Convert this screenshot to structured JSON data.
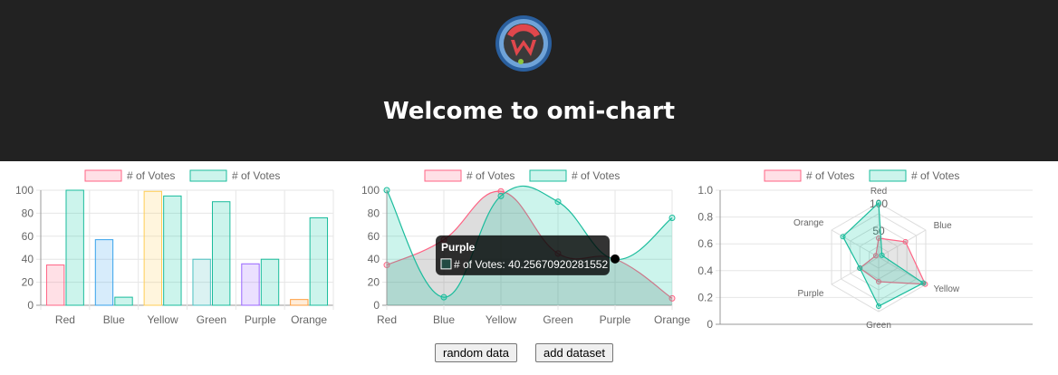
{
  "header": {
    "title": "Welcome to omi-chart",
    "logo_colors": {
      "ring_outer": "#2a5f9e",
      "ring_inner": "#6fa3d8",
      "core": "#e0474c",
      "dot": "#8cc63f"
    }
  },
  "colors": {
    "red_fill": "rgba(255,99,132,0.2)",
    "red_line": "#ff6384",
    "blue_fill": "rgba(54,162,235,0.2)",
    "blue_line": "#36a2eb",
    "yellow_fill": "rgba(255,206,86,0.2)",
    "yellow_line": "#ffce56",
    "green_fill": "rgba(75,192,192,0.2)",
    "green_line": "#4bc0c0",
    "purple_fill": "rgba(153,102,255,0.2)",
    "purple_line": "#9966ff",
    "orange_fill": "rgba(255,159,64,0.2)",
    "orange_line": "#ff9f40",
    "teal_fill": "rgba(0,200,160,0.2)",
    "teal_line": "#1abc9c",
    "pink_fill": "rgba(255,99,132,0.2)",
    "pink_line": "#ff6384"
  },
  "chart_data": [
    {
      "type": "bar",
      "categories": [
        "Red",
        "Blue",
        "Yellow",
        "Green",
        "Purple",
        "Orange"
      ],
      "ylim": [
        0,
        100
      ],
      "yticks": [
        0,
        20,
        40,
        60,
        80,
        100
      ],
      "legend_position": "top",
      "series": [
        {
          "name": "# of Votes",
          "values": [
            35,
            57,
            99,
            40,
            36,
            5
          ]
        },
        {
          "name": "# of Votes",
          "values": [
            100,
            7,
            95,
            90,
            40,
            76
          ]
        }
      ]
    },
    {
      "type": "area",
      "categories": [
        "Red",
        "Blue",
        "Yellow",
        "Green",
        "Purple",
        "Orange"
      ],
      "ylim": [
        0,
        100
      ],
      "yticks": [
        0,
        20,
        40,
        60,
        80,
        100
      ],
      "legend_position": "top",
      "series": [
        {
          "name": "# of Votes",
          "values": [
            35,
            57,
            99,
            45,
            40.2567092028155,
            6
          ]
        },
        {
          "name": "# of Votes",
          "values": [
            100,
            7,
            95,
            90,
            40,
            76
          ]
        }
      ],
      "tooltip": {
        "title": "Purple",
        "label": "# of Votes: 40.25670920281552"
      }
    },
    {
      "type": "radar",
      "categories": [
        "Red",
        "Blue",
        "Yellow",
        "Green",
        "Purple",
        "Orange"
      ],
      "rlim": [
        0,
        100
      ],
      "rticks": [
        "50",
        "100"
      ],
      "legend_position": "top",
      "series": [
        {
          "name": "# of Votes",
          "values": [
            35,
            57,
            99,
            45,
            40,
            6
          ]
        },
        {
          "name": "# of Votes",
          "values": [
            100,
            7,
            95,
            90,
            40,
            76
          ]
        }
      ],
      "side_axis": {
        "ticks": [
          "0",
          "0.2",
          "0.4",
          "0.6",
          "0.8",
          "1.0"
        ]
      }
    }
  ],
  "buttons": {
    "random": "random data",
    "add": "add dataset"
  }
}
